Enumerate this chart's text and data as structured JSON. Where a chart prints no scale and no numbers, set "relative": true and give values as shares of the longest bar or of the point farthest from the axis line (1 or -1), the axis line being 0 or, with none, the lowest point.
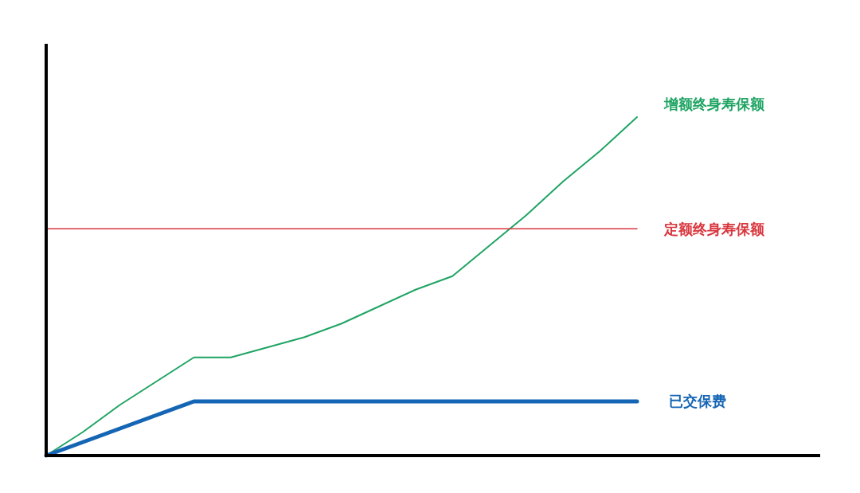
{
  "chart_data": {
    "type": "line",
    "relative": true,
    "legend": false,
    "categories": [
      null,
      null,
      null,
      null,
      null,
      null,
      null,
      null,
      null,
      null,
      null,
      null,
      null,
      null,
      null,
      null,
      null
    ],
    "series": [
      {
        "name": "增额终身寿保额",
        "color": "#1fa463",
        "values": [
          0,
          0.07,
          0.15,
          0.22,
          0.29,
          0.29,
          0.32,
          0.35,
          0.39,
          0.44,
          0.49,
          0.53,
          0.62,
          0.71,
          0.81,
          0.9,
          1
        ]
      },
      {
        "name": "定额终身寿保额",
        "color": "#d9363e",
        "values": [
          0.67,
          0.67,
          0.67,
          0.67,
          0.67,
          0.67,
          0.67,
          0.67,
          0.67,
          0.67,
          0.67,
          0.67,
          0.67,
          0.67,
          0.67,
          0.67,
          0.67
        ]
      },
      {
        "name": "已交保费",
        "color": "#1565b5",
        "values": [
          0,
          0.04,
          0.08,
          0.12,
          0.16,
          0.16,
          0.16,
          0.16,
          0.16,
          0.16,
          0.16,
          0.16,
          0.16,
          0.16,
          0.16,
          0.16,
          0.16
        ]
      }
    ]
  }
}
